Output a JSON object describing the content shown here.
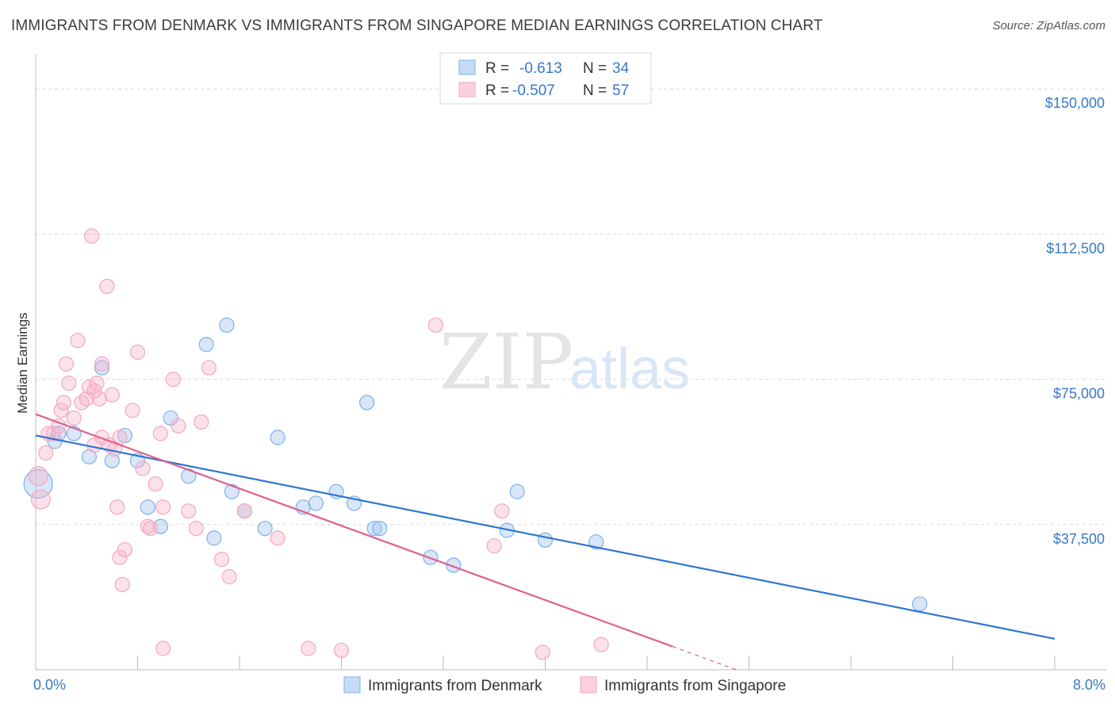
{
  "title": "IMMIGRANTS FROM DENMARK VS IMMIGRANTS FROM SINGAPORE MEDIAN EARNINGS CORRELATION CHART",
  "source": "Source: ZipAtlas.com",
  "watermark": {
    "zip": "ZIP",
    "atlas": "atlas"
  },
  "legend": {
    "r_label": "R =",
    "n_label": "N =",
    "rows": [
      {
        "r": "-0.613",
        "n": "34"
      },
      {
        "r": "-0.507",
        "n": "57"
      }
    ]
  },
  "chart_data": {
    "type": "scatter",
    "title": "IMMIGRANTS FROM DENMARK VS IMMIGRANTS FROM SINGAPORE MEDIAN EARNINGS CORRELATION CHART",
    "xlabel": "",
    "ylabel": "Median Earnings",
    "xlim": [
      0,
      8.0
    ],
    "ylim": [
      0,
      157000
    ],
    "x_tick_labels": [
      "0.0%",
      "8.0%"
    ],
    "y_ticks": [
      37500,
      75000,
      112500,
      150000
    ],
    "y_tick_labels": [
      "$37,500",
      "$75,000",
      "$112,500",
      "$150,000"
    ],
    "series": [
      {
        "name": "Immigrants from Denmark",
        "color": "#7fb0e8",
        "line_color": "#2f76d0",
        "trend": {
          "x0": 0.0,
          "y0": 60500,
          "x1": 8.0,
          "y1": 8000
        },
        "points": [
          [
            0.02,
            48000
          ],
          [
            0.15,
            59000
          ],
          [
            0.3,
            61000
          ],
          [
            0.42,
            55000
          ],
          [
            0.52,
            78000
          ],
          [
            0.6,
            54000
          ],
          [
            0.7,
            60500
          ],
          [
            0.8,
            54000
          ],
          [
            0.88,
            42000
          ],
          [
            0.98,
            37000
          ],
          [
            1.06,
            65000
          ],
          [
            1.2,
            50000
          ],
          [
            1.34,
            84000
          ],
          [
            1.4,
            34000
          ],
          [
            1.5,
            89000
          ],
          [
            1.54,
            46000
          ],
          [
            1.64,
            41000
          ],
          [
            1.8,
            36500
          ],
          [
            1.9,
            60000
          ],
          [
            2.1,
            42000
          ],
          [
            2.2,
            43000
          ],
          [
            2.36,
            46000
          ],
          [
            2.5,
            43000
          ],
          [
            2.6,
            69000
          ],
          [
            2.66,
            36500
          ],
          [
            2.7,
            36500
          ],
          [
            3.1,
            29000
          ],
          [
            3.28,
            27000
          ],
          [
            3.7,
            36000
          ],
          [
            3.78,
            46000
          ],
          [
            4.0,
            33500
          ],
          [
            4.4,
            33000
          ],
          [
            6.94,
            17000
          ],
          [
            0.18,
            61000
          ]
        ]
      },
      {
        "name": "Immigrants from Singapore",
        "color": "#f4a7bf",
        "line_color": "#e0608f",
        "trend": {
          "x0": 0.0,
          "y0": 66000,
          "x1": 5.0,
          "y1": 6000
        },
        "trend_dash": {
          "x0": 5.0,
          "y0": 6000,
          "x1": 5.5,
          "y1": 0
        },
        "points": [
          [
            0.02,
            50000
          ],
          [
            0.04,
            44000
          ],
          [
            0.08,
            56000
          ],
          [
            0.14,
            61000
          ],
          [
            0.18,
            63000
          ],
          [
            0.2,
            67000
          ],
          [
            0.22,
            69000
          ],
          [
            0.24,
            79000
          ],
          [
            0.26,
            74000
          ],
          [
            0.3,
            65000
          ],
          [
            0.33,
            85000
          ],
          [
            0.36,
            69000
          ],
          [
            0.4,
            70000
          ],
          [
            0.42,
            73000
          ],
          [
            0.44,
            112000
          ],
          [
            0.46,
            72000
          ],
          [
            0.48,
            74000
          ],
          [
            0.5,
            70000
          ],
          [
            0.52,
            60000
          ],
          [
            0.56,
            99000
          ],
          [
            0.58,
            58000
          ],
          [
            0.6,
            71000
          ],
          [
            0.62,
            57000
          ],
          [
            0.64,
            42000
          ],
          [
            0.66,
            29000
          ],
          [
            0.68,
            22000
          ],
          [
            0.7,
            31000
          ],
          [
            0.76,
            67000
          ],
          [
            0.8,
            82000
          ],
          [
            0.84,
            52000
          ],
          [
            0.88,
            37000
          ],
          [
            0.9,
            36500
          ],
          [
            0.94,
            48000
          ],
          [
            0.98,
            61000
          ],
          [
            1.0,
            42000
          ],
          [
            1.08,
            75000
          ],
          [
            1.12,
            63000
          ],
          [
            1.2,
            41000
          ],
          [
            1.26,
            36500
          ],
          [
            1.3,
            64000
          ],
          [
            1.36,
            78000
          ],
          [
            1.46,
            28500
          ],
          [
            1.52,
            24000
          ],
          [
            1.64,
            41000
          ],
          [
            1.9,
            34000
          ],
          [
            2.14,
            5500
          ],
          [
            2.4,
            5000
          ],
          [
            3.14,
            89000
          ],
          [
            3.6,
            32000
          ],
          [
            3.66,
            41000
          ],
          [
            3.98,
            4500
          ],
          [
            4.44,
            6500
          ],
          [
            1.0,
            5500
          ],
          [
            0.52,
            79000
          ],
          [
            0.1,
            61000
          ],
          [
            0.46,
            58000
          ],
          [
            0.66,
            60000
          ]
        ]
      }
    ]
  }
}
